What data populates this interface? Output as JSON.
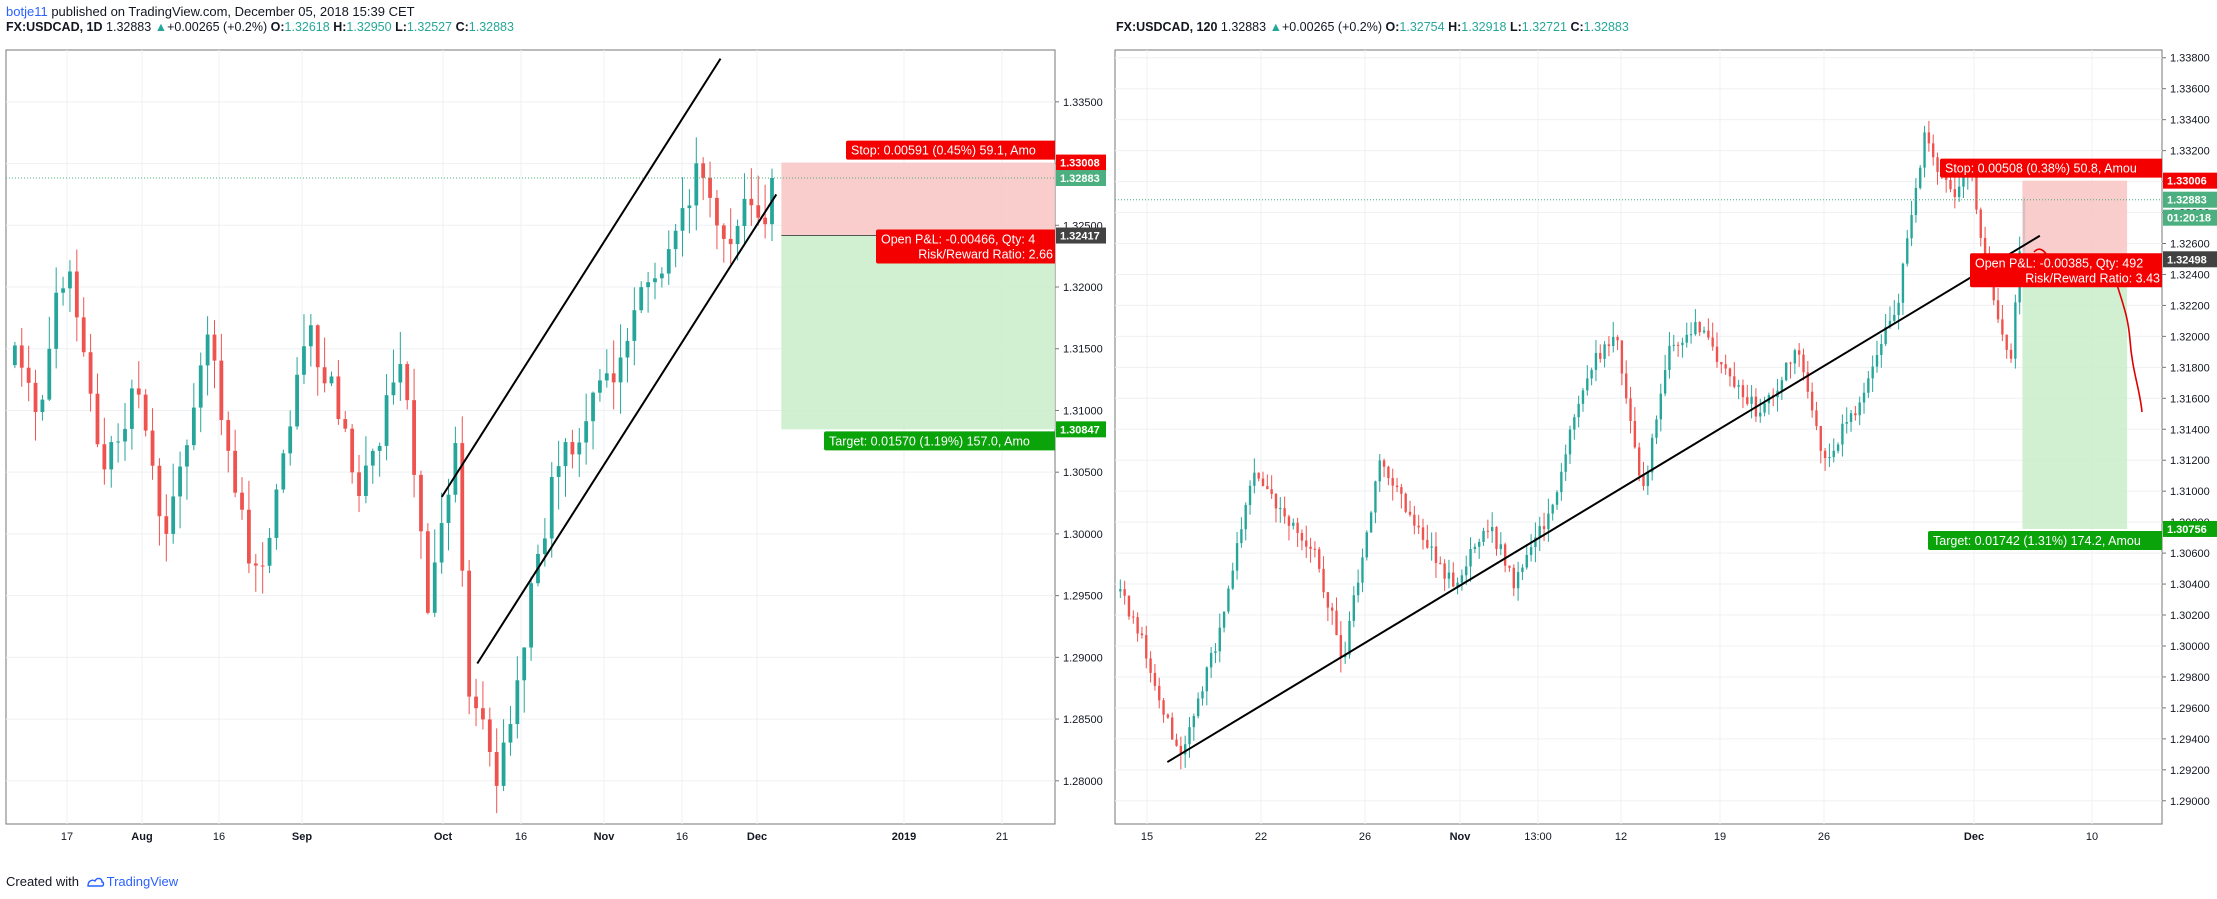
{
  "header": {
    "author": "botje11",
    "published": "published on TradingView.com, December 05, 2018 15:39 CET"
  },
  "footer": {
    "created": "Created with",
    "brand": "TradingView"
  },
  "colors": {
    "up": "#26a69a",
    "down": "#ef5350",
    "stop_zone": "#f9c4c4",
    "target_zone": "#c9ecc9",
    "stop_label": "#f40000",
    "target_label": "#0aa30a",
    "current_price": "#4caf7f",
    "entry_label": "#424242"
  },
  "charts": [
    {
      "symbol": "FX:USDCAD, 1D",
      "last": "1.32883",
      "change": "+0.00265 (+0.2%)",
      "O": "1.32618",
      "H": "1.32950",
      "L": "1.32527",
      "C": "1.32883",
      "stop_text": "Stop: 0.00591 (0.45%) 59.1, Amo",
      "pnl_text": "Open P&L: -0.00466, Qty: 4",
      "rr_text": "Risk/Reward Ratio: 2.66",
      "target_text": "Target: 0.01570 (1.19%) 157.0, Amo",
      "price_labels": {
        "stop": "1.33008",
        "current": "1.32883",
        "entry": "1.32417",
        "target": "1.30847"
      },
      "x_ticks": [
        "17",
        "Aug",
        "16",
        "Sep",
        "Oct",
        "16",
        "Nov",
        "16",
        "Dec",
        "2019",
        "21"
      ],
      "y_ticks": [
        "1.33500",
        "1.33000",
        "1.32500",
        "1.32000",
        "1.31500",
        "1.31000",
        "1.30500",
        "1.30000",
        "1.29500",
        "1.29000",
        "1.28500",
        "1.28000"
      ]
    },
    {
      "symbol": "FX:USDCAD, 120",
      "last": "1.32883",
      "change": "+0.00265 (+0.2%)",
      "O": "1.32754",
      "H": "1.32918",
      "L": "1.32721",
      "C": "1.32883",
      "stop_text": "Stop: 0.00508 (0.38%) 50.8, Amou",
      "pnl_text": "Open P&L: -0.00385, Qty: 492",
      "rr_text": "Risk/Reward Ratio: 3.43",
      "target_text": "Target: 0.01742 (1.31%) 174.2, Amou",
      "price_labels": {
        "stop": "1.33006",
        "current": "1.32883",
        "countdown": "01:20:18",
        "entry": "1.32498",
        "target": "1.30756"
      },
      "x_ticks": [
        "15",
        "22",
        "26",
        "Nov",
        "13:00",
        "12",
        "19",
        "26",
        "Dec",
        "10"
      ],
      "y_ticks": [
        "1.33800",
        "1.33600",
        "1.33400",
        "1.33200",
        "1.33000",
        "1.32800",
        "1.32600",
        "1.32400",
        "1.32200",
        "1.32000",
        "1.31800",
        "1.31600",
        "1.31400",
        "1.31200",
        "1.31000",
        "1.30800",
        "1.30600",
        "1.30400",
        "1.30200",
        "1.30000",
        "1.29800",
        "1.29600",
        "1.29400",
        "1.29200",
        "1.29000"
      ]
    }
  ],
  "chart_data": [
    {
      "type": "candlestick",
      "timeframe": "1D",
      "price_range": [
        1.2765,
        1.3392
      ],
      "x_range": [
        "2018-07-07",
        "2019-01-30"
      ],
      "series": [
        {
          "date": "2018-10-01",
          "open": 1.2925,
          "high": 1.2935,
          "low": 1.278,
          "close": 1.2795
        },
        {
          "date": "2018-10-12",
          "open": 1.303,
          "high": 1.307,
          "low": 1.298,
          "close": 1.306
        },
        {
          "date": "2018-11-01",
          "open": 1.312,
          "high": 1.316,
          "low": 1.308,
          "close": 1.309
        },
        {
          "date": "2018-11-19",
          "open": 1.324,
          "high": 1.332,
          "low": 1.322,
          "close": 1.33
        },
        {
          "date": "2018-12-04",
          "open": 1.32,
          "high": 1.328,
          "low": 1.316,
          "close": 1.3262
        },
        {
          "date": "2018-12-05",
          "open": 1.32618,
          "high": 1.3295,
          "low": 1.32527,
          "close": 1.32883
        }
      ],
      "trendlines": [
        {
          "from": [
            "2018-10-01",
            1.303
          ],
          "to": [
            "2018-11-25",
            1.3385
          ]
        },
        {
          "from": [
            "2018-10-08",
            1.2895
          ],
          "to": [
            "2018-12-06",
            1.3275
          ]
        }
      ],
      "position": {
        "type": "short",
        "entry": 1.32417,
        "stop": 1.33008,
        "target": 1.30847,
        "start": "2018-12-07",
        "end": "2019-01-30"
      },
      "current_price": 1.32883
    },
    {
      "type": "candlestick",
      "timeframe": "120",
      "price_range": [
        1.2885,
        1.3385
      ],
      "x_range": [
        "2018-10-14",
        "2018-12-13"
      ],
      "series": [
        {
          "date": "2018-10-17",
          "open": 1.296,
          "high": 1.297,
          "low": 1.292,
          "close": 1.293
        },
        {
          "date": "2018-11-01",
          "open": 1.31,
          "high": 1.312,
          "low": 1.307,
          "close": 1.308
        },
        {
          "date": "2018-11-20",
          "open": 1.3175,
          "high": 1.32,
          "low": 1.3165,
          "close": 1.318
        },
        {
          "date": "2018-11-29",
          "open": 1.334,
          "high": 1.336,
          "low": 1.33,
          "close": 1.331
        },
        {
          "date": "2018-12-05",
          "open": 1.32754,
          "high": 1.32918,
          "low": 1.32721,
          "close": 1.32883
        }
      ],
      "trendlines": [
        {
          "from": [
            "2018-10-17",
            1.2925
          ],
          "to": [
            "2018-12-06",
            1.3265
          ]
        }
      ],
      "position": {
        "type": "short",
        "entry": 1.32498,
        "stop": 1.33006,
        "target": 1.30756,
        "start": "2018-12-05",
        "end": "2018-12-11"
      },
      "current_price": 1.32883
    }
  ]
}
